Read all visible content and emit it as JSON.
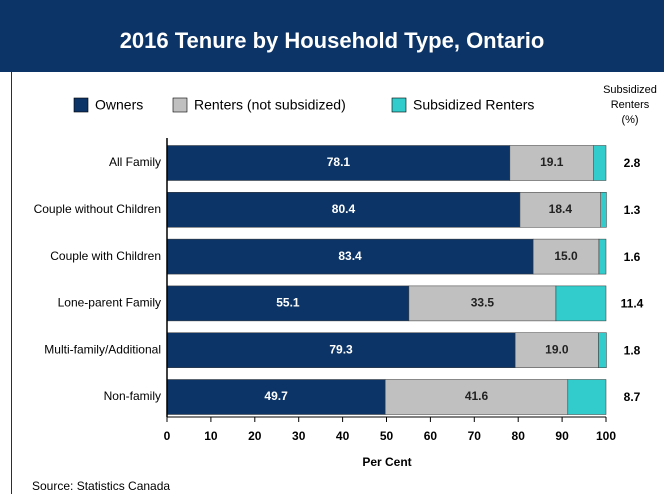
{
  "chart_data": {
    "type": "stacked-bar-horizontal",
    "title": "2016 Tenure by Household Type, Ontario",
    "categories": [
      "All Family",
      "Couple without Children",
      "Couple with Children",
      "Lone-parent Family",
      "Multi-family/Additional",
      "Non-family"
    ],
    "series": [
      {
        "name": "Owners",
        "color": "#0d3466",
        "values": [
          78.1,
          80.4,
          83.4,
          55.1,
          79.3,
          49.7
        ]
      },
      {
        "name": "Renters (not subsidized)",
        "color": "#c0c0c0",
        "values": [
          19.1,
          18.4,
          15.0,
          33.5,
          19.0,
          41.6
        ],
        "value_labels": [
          "19.1",
          "18.4",
          "15.0",
          "33.5",
          "19.0",
          "41.6"
        ]
      },
      {
        "name": "Subsidized Renters",
        "color": "#33cccc",
        "values": [
          2.8,
          1.3,
          1.6,
          11.4,
          1.8,
          8.7
        ]
      }
    ],
    "right_column_title": [
      "Subsidized",
      "Renters",
      "(%)"
    ],
    "xlabel": "Per Cent",
    "xlim": [
      0,
      100
    ],
    "xticks": [
      0,
      10,
      20,
      30,
      40,
      50,
      60,
      70,
      80,
      90,
      100
    ],
    "source": "Source: Statistics Canada"
  }
}
